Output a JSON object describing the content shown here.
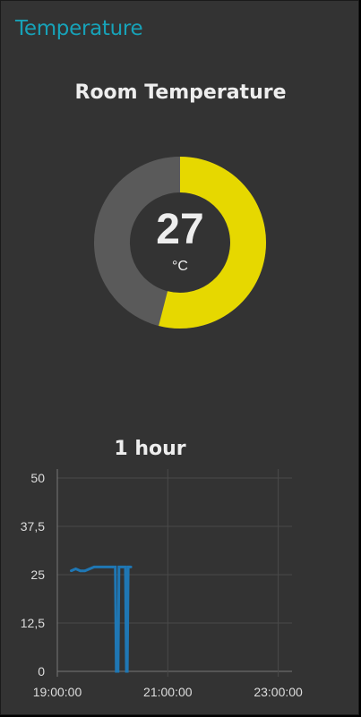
{
  "group": {
    "title": "Temperature"
  },
  "gauge": {
    "title": "Room Temperature",
    "value": "27",
    "units": "°C",
    "fraction": 0.54,
    "colors": {
      "fill": "#e6d800",
      "track": "#5a5a5a"
    }
  },
  "chart": {
    "title": "1 hour"
  },
  "chart_data": {
    "type": "line",
    "title": "1 hour",
    "xlabel": "",
    "ylabel": "",
    "ylim": [
      0,
      50
    ],
    "yticks": [
      "50",
      "37,5",
      "25",
      "12,5",
      "0"
    ],
    "xticks": [
      "19:00:00",
      "21:00:00",
      "23:00:00"
    ],
    "xlim": [
      "19:00:00",
      "23:15:00"
    ],
    "grid": true,
    "series": [
      {
        "color": "#1f77b4",
        "points": [
          {
            "x": "19:15:00",
            "y": 26
          },
          {
            "x": "19:20:00",
            "y": 26.5
          },
          {
            "x": "19:25:00",
            "y": 26
          },
          {
            "x": "19:30:00",
            "y": 26
          },
          {
            "x": "19:40:00",
            "y": 27
          },
          {
            "x": "20:00:00",
            "y": 27
          },
          {
            "x": "20:03:00",
            "y": 27
          },
          {
            "x": "20:04:00",
            "y": 0
          },
          {
            "x": "20:06:00",
            "y": 0
          },
          {
            "x": "20:07:00",
            "y": 27
          },
          {
            "x": "20:14:00",
            "y": 27
          },
          {
            "x": "20:15:00",
            "y": 0
          },
          {
            "x": "20:16:00",
            "y": 0
          },
          {
            "x": "20:17:00",
            "y": 27
          },
          {
            "x": "20:20:00",
            "y": 27
          }
        ]
      }
    ]
  }
}
